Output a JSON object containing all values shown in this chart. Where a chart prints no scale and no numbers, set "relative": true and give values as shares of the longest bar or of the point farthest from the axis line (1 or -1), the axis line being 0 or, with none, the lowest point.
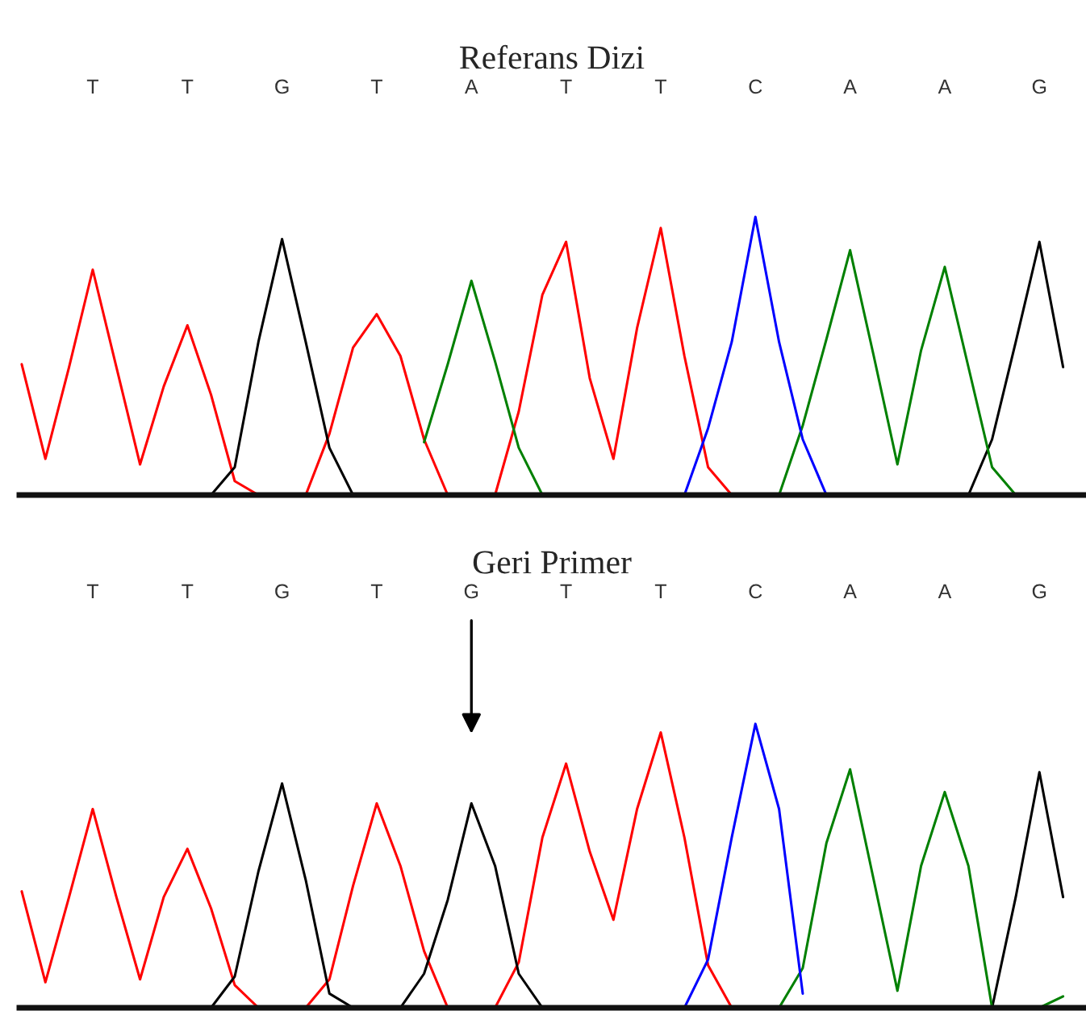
{
  "chart_data": [
    {
      "type": "line",
      "title": "Referans Dizi",
      "relative": true,
      "legend": false,
      "marker": "none",
      "line_style": "solid",
      "categories": [
        null,
        null,
        null,
        "T",
        null,
        null,
        null,
        "T",
        null,
        null,
        null,
        "G",
        null,
        null,
        null,
        "T",
        null,
        null,
        null,
        "A",
        null,
        null,
        null,
        "T",
        null,
        null,
        null,
        "T",
        null,
        null,
        null,
        "C",
        null,
        null,
        null,
        "A",
        null,
        null,
        null,
        "A",
        null,
        null,
        null,
        "G",
        null
      ],
      "series": [
        {
          "color": "#ff0000",
          "values": [
            0.47,
            0.13,
            0.46,
            0.81,
            0.46,
            0.11,
            0.39,
            0.61,
            0.36,
            0.05,
            0,
            null,
            0,
            0.22,
            0.53,
            0.65,
            0.5,
            0.2,
            0,
            null,
            0,
            0.3,
            0.72,
            0.91,
            0.42,
            0.13,
            0.6,
            0.96,
            0.5,
            0.1,
            0,
            null,
            null,
            null,
            null,
            null,
            null,
            null,
            null,
            null,
            null,
            null,
            null,
            null,
            null
          ]
        },
        {
          "color": "#000000",
          "values": [
            null,
            null,
            null,
            null,
            null,
            null,
            null,
            null,
            0,
            0.1,
            0.55,
            0.92,
            0.55,
            0.17,
            0,
            null,
            null,
            null,
            null,
            null,
            null,
            null,
            null,
            null,
            null,
            null,
            null,
            null,
            null,
            null,
            null,
            null,
            null,
            null,
            null,
            null,
            null,
            null,
            null,
            null,
            0,
            0.2,
            0.55,
            0.91,
            0.46
          ]
        },
        {
          "color": "#008000",
          "values": [
            null,
            null,
            null,
            null,
            null,
            null,
            null,
            null,
            null,
            null,
            null,
            null,
            null,
            null,
            null,
            null,
            null,
            0.19,
            0.47,
            0.77,
            0.48,
            0.17,
            0,
            null,
            null,
            null,
            null,
            null,
            null,
            null,
            null,
            null,
            0,
            0.25,
            0.56,
            0.88,
            0.5,
            0.11,
            0.52,
            0.82,
            0.46,
            0.1,
            0,
            null,
            null
          ]
        },
        {
          "color": "#0000ff",
          "values": [
            null,
            null,
            null,
            null,
            null,
            null,
            null,
            null,
            null,
            null,
            null,
            null,
            null,
            null,
            null,
            null,
            null,
            null,
            null,
            null,
            null,
            null,
            null,
            null,
            null,
            null,
            null,
            null,
            0,
            0.24,
            0.55,
            1,
            0.55,
            0.2,
            0,
            null,
            null,
            null,
            null,
            null,
            null,
            null,
            null,
            null,
            null
          ]
        }
      ]
    },
    {
      "type": "line",
      "title": "Geri Primer",
      "relative": true,
      "legend": false,
      "marker": "none",
      "line_style": "solid",
      "categories": [
        null,
        null,
        null,
        "T",
        null,
        null,
        null,
        "T",
        null,
        null,
        null,
        "G",
        null,
        null,
        null,
        "T",
        null,
        null,
        null,
        "G",
        null,
        null,
        null,
        "T",
        null,
        null,
        null,
        "T",
        null,
        null,
        null,
        "C",
        null,
        null,
        null,
        "A",
        null,
        null,
        null,
        "A",
        null,
        null,
        null,
        "G",
        null
      ],
      "series": [
        {
          "color": "#ff0000",
          "values": [
            0.41,
            0.09,
            0.39,
            0.7,
            0.39,
            0.1,
            0.39,
            0.56,
            0.35,
            0.08,
            0,
            null,
            0,
            0.1,
            0.43,
            0.72,
            0.5,
            0.2,
            0,
            null,
            0,
            0.16,
            0.6,
            0.86,
            0.55,
            0.31,
            0.7,
            0.97,
            0.6,
            0.15,
            0,
            null,
            null,
            null,
            null,
            null,
            null,
            null,
            null,
            null,
            null,
            null,
            null,
            null,
            null
          ]
        },
        {
          "color": "#000000",
          "values": [
            null,
            null,
            null,
            null,
            null,
            null,
            null,
            null,
            0,
            0.11,
            0.48,
            0.79,
            0.45,
            0.05,
            0,
            null,
            0,
            0.12,
            0.38,
            0.72,
            0.5,
            0.12,
            0,
            null,
            null,
            null,
            null,
            null,
            null,
            null,
            null,
            null,
            null,
            null,
            null,
            null,
            null,
            null,
            null,
            null,
            null,
            0,
            0.39,
            0.83,
            0.39
          ]
        },
        {
          "color": "#008000",
          "values": [
            null,
            null,
            null,
            null,
            null,
            null,
            null,
            null,
            null,
            null,
            null,
            null,
            null,
            null,
            null,
            null,
            null,
            null,
            null,
            null,
            null,
            null,
            null,
            null,
            null,
            null,
            null,
            null,
            null,
            null,
            null,
            null,
            0,
            0.14,
            0.58,
            0.84,
            0.45,
            0.06,
            0.5,
            0.76,
            0.5,
            0,
            null,
            0,
            0.04
          ]
        },
        {
          "color": "#0000ff",
          "values": [
            null,
            null,
            null,
            null,
            null,
            null,
            null,
            null,
            null,
            null,
            null,
            null,
            null,
            null,
            null,
            null,
            null,
            null,
            null,
            null,
            null,
            null,
            null,
            null,
            null,
            null,
            null,
            null,
            0,
            0.17,
            0.6,
            1,
            0.7,
            0.05,
            null,
            null,
            null,
            null,
            null,
            null,
            null,
            null,
            null,
            null,
            null
          ]
        }
      ]
    }
  ]
}
